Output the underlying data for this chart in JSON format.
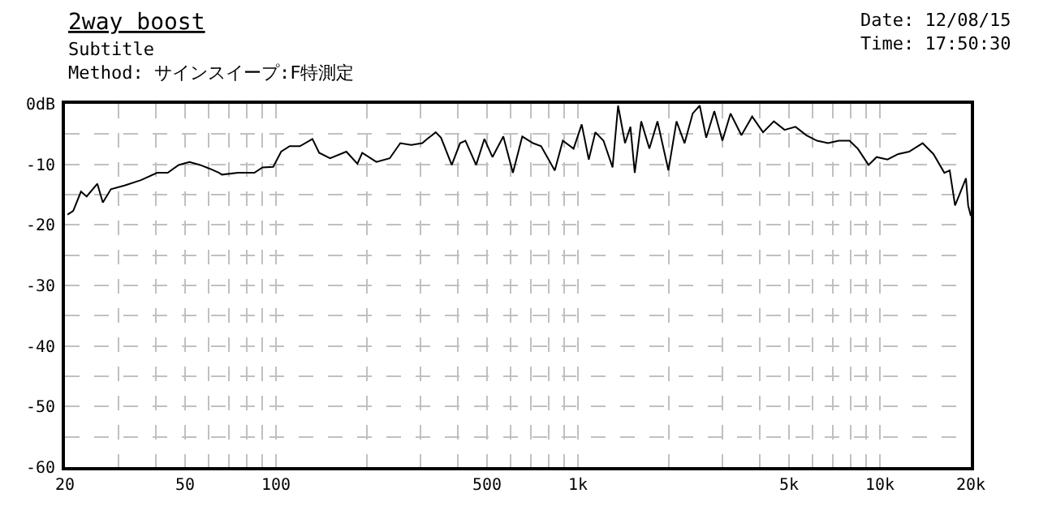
{
  "chart_data": {
    "type": "line",
    "title": "2way boost",
    "subtitle": "Subtitle",
    "annotations": [
      "Method: サインスイープ:F特測定",
      "Date: 12/08/15",
      "Time: 17:50:30"
    ],
    "x": [
      20.4,
      21.3,
      22.6,
      23.6,
      25.6,
      26.7,
      28.4,
      31.5,
      35.7,
      40.4,
      43.8,
      47.6,
      51.7,
      56.1,
      60.9,
      64.8,
      66.2,
      74.9,
      84.8,
      90.2,
      97.9,
      104,
      111,
      120,
      132,
      139,
      151,
      171,
      186,
      193,
      215,
      238,
      258,
      280,
      305,
      317,
      338,
      352,
      382,
      407,
      424,
      460,
      490,
      521,
      566,
      609,
      654,
      710,
      755,
      838,
      891,
      967,
      1029,
      1086,
      1142,
      1215,
      1302,
      1358,
      1432,
      1492,
      1542,
      1620,
      1724,
      1834,
      1993,
      2120,
      2255,
      2399,
      2531,
      2659,
      2829,
      3009,
      3201,
      3478,
      3775,
      4101,
      4455,
      4834,
      5254,
      5707,
      6193,
      6729,
      7310,
      7933,
      8441,
      9170,
      9755,
      10598,
      11496,
      12490,
      13849,
      15043,
      16346,
      17025,
      17736,
      18500,
      19270,
      19600,
      20000
    ],
    "series": [
      {
        "color": "#000000",
        "values": [
          -18.3,
          -17.7,
          -14.5,
          -15.3,
          -13.2,
          -16.3,
          -14.1,
          -13.5,
          -12.6,
          -11.4,
          -11.4,
          -10.1,
          -9.6,
          -10.1,
          -10.8,
          -11.4,
          -11.7,
          -11.4,
          -11.4,
          -10.5,
          -10.4,
          -7.9,
          -7.0,
          -7.0,
          -5.8,
          -8.1,
          -9.0,
          -7.9,
          -9.9,
          -8.1,
          -9.6,
          -9.0,
          -6.5,
          -6.8,
          -6.5,
          -5.8,
          -4.7,
          -5.6,
          -10.1,
          -6.5,
          -6.1,
          -10.1,
          -5.8,
          -8.8,
          -5.4,
          -11.4,
          -5.4,
          -6.5,
          -7.0,
          -11.0,
          -6.1,
          -7.4,
          -3.4,
          -9.2,
          -4.7,
          -6.1,
          -10.5,
          -0.3,
          -6.5,
          -3.8,
          -11.4,
          -2.9,
          -7.4,
          -2.9,
          -11.0,
          -2.9,
          -6.5,
          -1.6,
          -0.3,
          -5.6,
          -1.2,
          -6.1,
          -1.6,
          -5.2,
          -2.1,
          -4.7,
          -2.9,
          -4.3,
          -3.8,
          -5.2,
          -6.1,
          -6.5,
          -6.1,
          -6.1,
          -7.4,
          -10.1,
          -8.8,
          -9.2,
          -8.3,
          -7.9,
          -6.5,
          -8.3,
          -11.4,
          -11.0,
          -16.8,
          -14.5,
          -12.3,
          -16.8,
          -18.5
        ]
      }
    ],
    "log": "x",
    "xlim": [
      20,
      20000
    ],
    "xticks": [
      {
        "value": 20,
        "label": "20"
      },
      {
        "value": 30,
        "label": null
      },
      {
        "value": 40,
        "label": null
      },
      {
        "value": 50,
        "label": "50"
      },
      {
        "value": 60,
        "label": null
      },
      {
        "value": 70,
        "label": null
      },
      {
        "value": 80,
        "label": null
      },
      {
        "value": 90,
        "label": null
      },
      {
        "value": 100,
        "label": "100"
      },
      {
        "value": 200,
        "label": null
      },
      {
        "value": 300,
        "label": null
      },
      {
        "value": 400,
        "label": null
      },
      {
        "value": 500,
        "label": "500"
      },
      {
        "value": 600,
        "label": null
      },
      {
        "value": 700,
        "label": null
      },
      {
        "value": 800,
        "label": null
      },
      {
        "value": 900,
        "label": null
      },
      {
        "value": 1000,
        "label": "1k"
      },
      {
        "value": 2000,
        "label": null
      },
      {
        "value": 3000,
        "label": null
      },
      {
        "value": 4000,
        "label": null
      },
      {
        "value": 5000,
        "label": "5k"
      },
      {
        "value": 6000,
        "label": null
      },
      {
        "value": 7000,
        "label": null
      },
      {
        "value": 8000,
        "label": null
      },
      {
        "value": 9000,
        "label": null
      },
      {
        "value": 10000,
        "label": "10k"
      },
      {
        "value": 20000,
        "label": "20k"
      }
    ],
    "ylim": [
      -60,
      0
    ],
    "yticks": [
      {
        "value": 0,
        "label": "0dB"
      },
      {
        "value": -5,
        "label": null
      },
      -10,
      {
        "value": -15,
        "label": null
      },
      -20,
      {
        "value": -25,
        "label": null
      },
      -30,
      {
        "value": -35,
        "label": null
      },
      -40,
      {
        "value": -45,
        "label": null
      },
      -50,
      {
        "value": -55,
        "label": null
      },
      -60
    ],
    "grid": true,
    "line_style": "solid",
    "marker": "none"
  }
}
